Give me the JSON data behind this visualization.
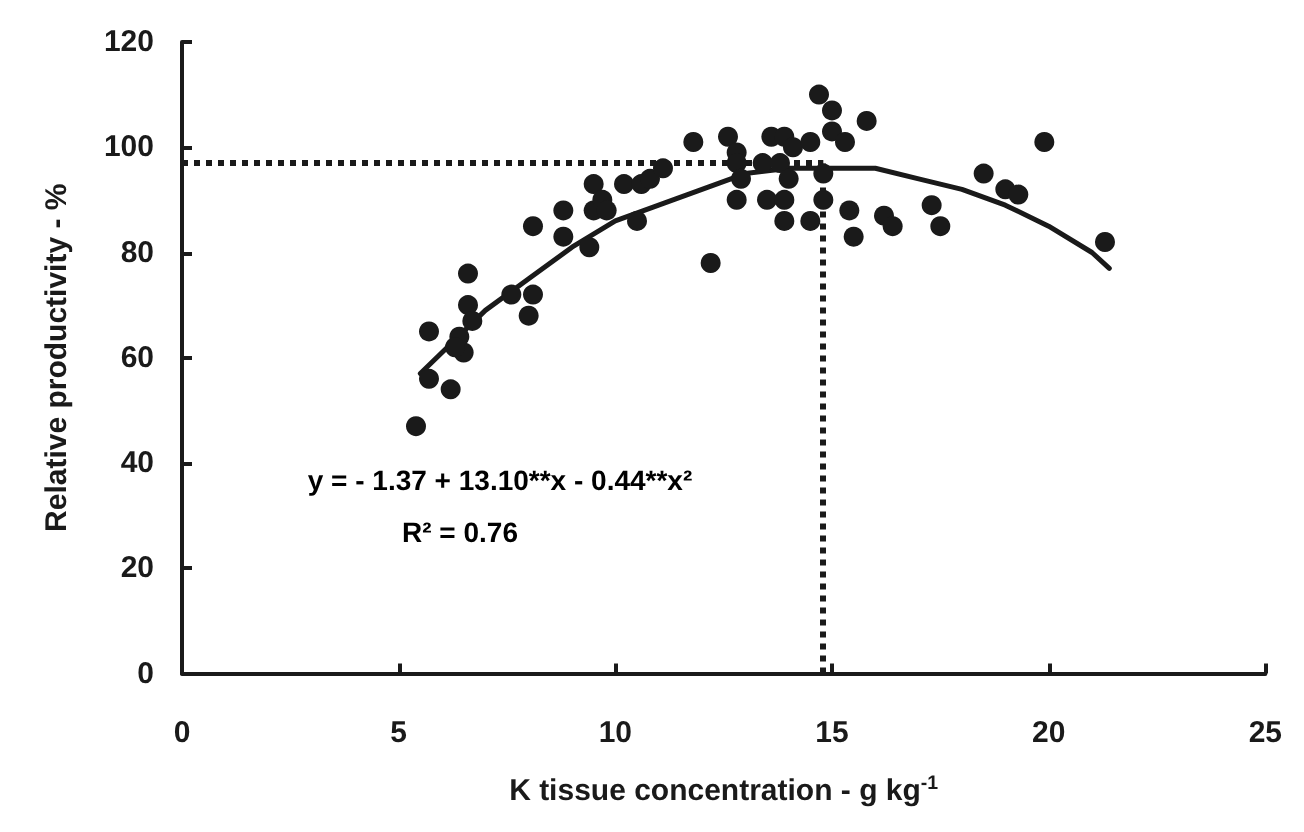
{
  "chart_data": {
    "type": "scatter",
    "xlabel": "K tissue concentration - g kg$^{-1}$",
    "ylabel": "Relative productivity - %",
    "xlim": [
      0,
      25
    ],
    "xticks": [
      0,
      5,
      10,
      15,
      20,
      25
    ],
    "ylim": [
      0,
      120
    ],
    "yticks": [
      0,
      20,
      40,
      60,
      80,
      100,
      120
    ],
    "marker": "circle",
    "series": [
      {
        "color": "#1a1a1a",
        "x": [
          5.4,
          5.7,
          6.2,
          5.7,
          6.6,
          6.6,
          6.7,
          6.4,
          6.5,
          6.3,
          7.6,
          8.1,
          8.0,
          8.1,
          8.8,
          8.8,
          9.4,
          9.5,
          9.5,
          9.7,
          10.2,
          10.5,
          10.6,
          10.8,
          11.1,
          12.2,
          9.8,
          11.8,
          12.6,
          12.8,
          12.8,
          12.9,
          12.8,
          13.4,
          13.6,
          13.9,
          14.1,
          14.5,
          13.8,
          14.0,
          13.5,
          13.9,
          13.9,
          14.5,
          14.8,
          14.8,
          14.7,
          15.0,
          15.0,
          15.3,
          15.8,
          15.4,
          15.5,
          16.2,
          16.4,
          17.3,
          17.5,
          18.5,
          19.0,
          19.3,
          19.9,
          21.3
        ],
        "values": [
          47,
          56,
          54,
          65,
          76,
          70,
          67,
          64,
          61,
          62,
          72,
          72,
          68,
          85,
          88,
          83,
          81,
          93,
          88,
          90,
          93,
          86,
          93,
          94,
          96,
          78,
          88,
          101,
          102,
          99,
          97,
          94,
          90,
          97,
          102,
          102,
          100,
          101,
          97,
          94,
          90,
          90,
          86,
          86,
          90,
          95,
          110,
          107,
          103,
          101,
          105,
          88,
          83,
          87,
          85,
          89,
          85,
          95,
          92,
          91,
          101,
          82
        ]
      },
      {
        "type": "line",
        "color": "#1a1a1a",
        "marker": "none",
        "line_style": "solid",
        "x": [
          5.5,
          6,
          7,
          8,
          9,
          10,
          11,
          12,
          13,
          14,
          15,
          16,
          17,
          18,
          19,
          20,
          21,
          21.4
        ],
        "values": [
          57,
          61,
          69,
          75,
          81,
          86,
          89,
          92,
          95,
          96,
          96,
          96,
          94,
          92,
          89,
          85,
          80,
          77
        ]
      }
    ],
    "ref_lines": [
      {
        "axis": "y",
        "value": 97,
        "line_style": "dotted",
        "color": "#1a1a1a"
      },
      {
        "axis": "x",
        "value": 14.8,
        "line_style": "dotted",
        "color": "#1a1a1a"
      }
    ],
    "annotations": [
      "y = - 1.37 + 13.10**x - 0.44**x²",
      "R² = 0.76"
    ]
  }
}
